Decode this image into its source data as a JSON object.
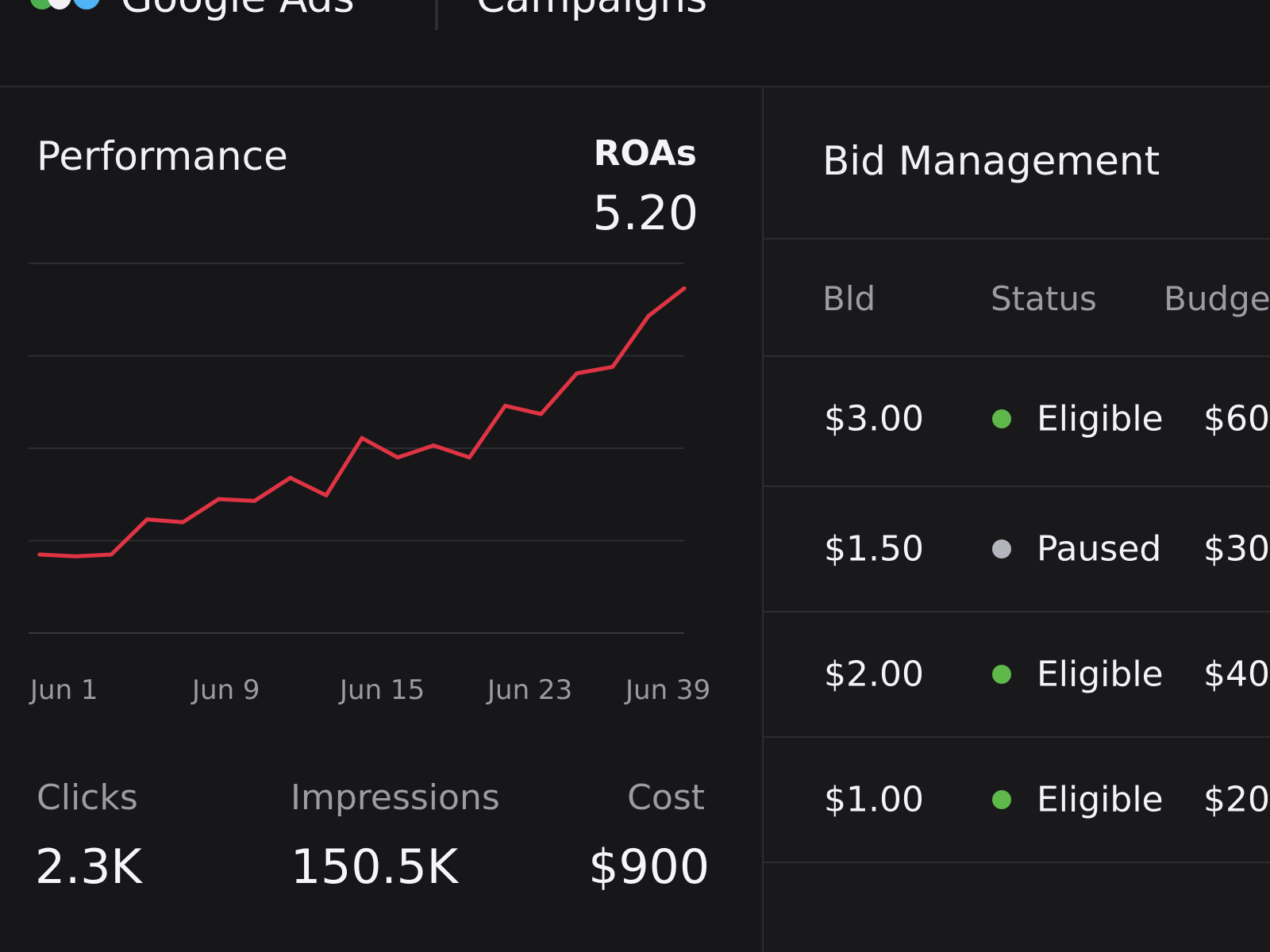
{
  "header": {
    "app_title": "Google Ads",
    "section_title": "Campaigns"
  },
  "performance": {
    "title": "Performance",
    "roas_label": "ROAs",
    "roas_value": "5.20",
    "x_ticks": [
      "Jun 1",
      "Jun 9",
      "Jun 15",
      "Jun 23",
      "Jun 39"
    ],
    "line_color": "#e03444"
  },
  "chart_data": {
    "type": "line",
    "title": "Performance",
    "grid": true,
    "ylim": [
      0,
      4
    ],
    "x_tick_labels": [
      "Jun 1",
      "Jun 9",
      "Jun 15",
      "Jun 23",
      "Jun 39"
    ],
    "series": [
      {
        "values": [
          0.85,
          0.83,
          0.85,
          1.23,
          1.2,
          1.45,
          1.43,
          1.68,
          1.49,
          2.11,
          1.9,
          2.03,
          1.9,
          2.46,
          2.37,
          2.81,
          2.88,
          3.43,
          3.73
        ]
      }
    ]
  },
  "metrics": [
    {
      "label": "Clicks",
      "value": "2.3K"
    },
    {
      "label": "Impressions",
      "value": "150.5K"
    },
    {
      "label": "Cost",
      "value": "$900"
    }
  ],
  "bid_management": {
    "title": "Bid Management",
    "columns": [
      "Bld",
      "Status",
      "Budge"
    ],
    "rows": [
      {
        "bid": "$3.00",
        "status": "Eligible",
        "status_color": "#5fb84a",
        "budget": "$60"
      },
      {
        "bid": "$1.50",
        "status": "Paused",
        "status_color": "#b4b4bc",
        "budget": "$30"
      },
      {
        "bid": "$2.00",
        "status": "Eligible",
        "status_color": "#5fb84a",
        "budget": "$40"
      },
      {
        "bid": "$1.00",
        "status": "Eligible",
        "status_color": "#5fb84a",
        "budget": "$20"
      }
    ]
  }
}
